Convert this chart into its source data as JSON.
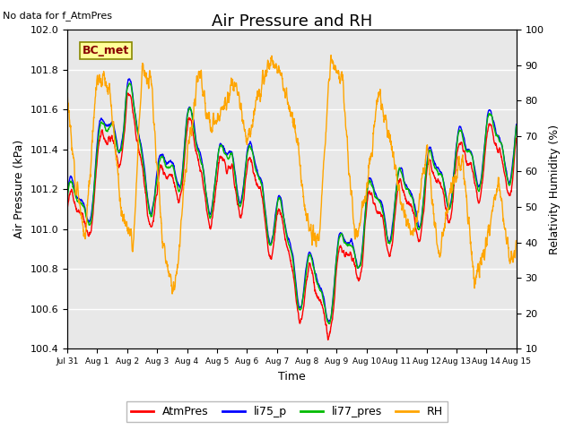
{
  "title": "Air Pressure and RH",
  "subtitle": "No data for f_AtmPres",
  "annotation": "BC_met",
  "xlabel": "Time",
  "ylabel_left": "Air Pressure (kPa)",
  "ylabel_right": "Relativity Humidity (%)",
  "ylim_left": [
    100.4,
    102.0
  ],
  "ylim_right": [
    10,
    100
  ],
  "yticks_left": [
    100.4,
    100.6,
    100.8,
    101.0,
    101.2,
    101.4,
    101.6,
    101.8,
    102.0
  ],
  "yticks_right": [
    10,
    20,
    30,
    40,
    50,
    60,
    70,
    80,
    90,
    100
  ],
  "xtick_labels": [
    "Jul 31",
    "Aug 1",
    "Aug 2",
    "Aug 3",
    "Aug 4",
    "Aug 5",
    "Aug 6",
    "Aug 7",
    "Aug 8",
    "Aug 9",
    "Aug 10",
    "Aug 11",
    "Aug 12",
    "Aug 13",
    "Aug 14",
    "Aug 15"
  ],
  "colors": {
    "AtmPres": "#FF0000",
    "li75_p": "#0000FF",
    "li77_pres": "#00BB00",
    "RH": "#FFA500"
  },
  "legend_labels": [
    "AtmPres",
    "li75_p",
    "li77_pres",
    "RH"
  ],
  "plot_bg_color": "#E8E8E8",
  "grid_color": "#FFFFFF",
  "title_fontsize": 13,
  "subtitle_fontsize": 8,
  "axis_fontsize": 9,
  "tick_fontsize": 8,
  "legend_fontsize": 9,
  "annotation_fontsize": 9,
  "annotation_bg": "#FFFF99",
  "annotation_edge": "#888800",
  "annotation_text_color": "#880000"
}
